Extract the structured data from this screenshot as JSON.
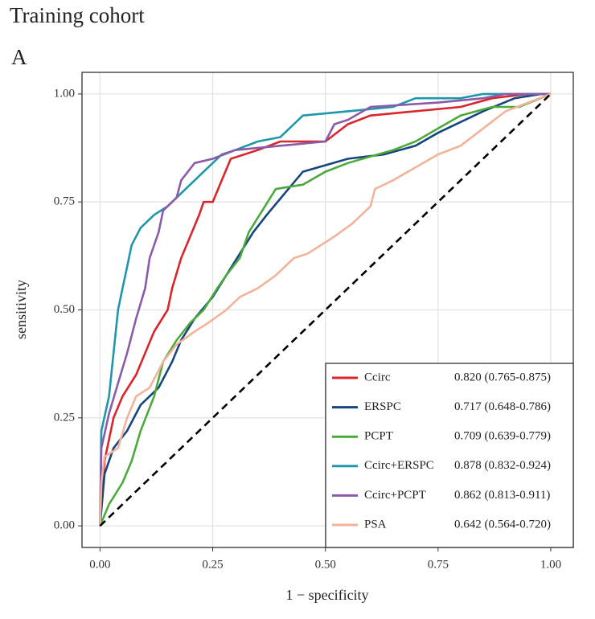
{
  "chart_data": {
    "type": "line",
    "title": "Training cohort",
    "subtitle": "A",
    "x_label": "1 − specificity",
    "y_label": "sensitivity",
    "xlim": [
      -0.04,
      1.05
    ],
    "ylim": [
      -0.05,
      1.05
    ],
    "xticks": [
      {
        "value": 0,
        "label": "0.00"
      },
      {
        "value": 0.25,
        "label": "0.25"
      },
      {
        "value": 0.5,
        "label": "0.50"
      },
      {
        "value": 0.75,
        "label": "0.75"
      },
      {
        "value": 1,
        "label": "1.00"
      }
    ],
    "yticks": [
      {
        "value": 0,
        "label": "0.00"
      },
      {
        "value": 0.25,
        "label": "0.25"
      },
      {
        "value": 0.5,
        "label": "0.50"
      },
      {
        "value": 0.75,
        "label": "0.75"
      },
      {
        "value": 1,
        "label": "1.00"
      }
    ],
    "grid": true,
    "reference_diagonal": true,
    "legend": "bottom-right",
    "series": [
      {
        "name": "Ccirc",
        "color": "#d9262c",
        "label": "0.820 (0.765-0.875)",
        "x": [
          0,
          0.01,
          0.03,
          0.05,
          0.08,
          0.1,
          0.12,
          0.15,
          0.16,
          0.18,
          0.2,
          0.22,
          0.23,
          0.25,
          0.27,
          0.29,
          0.35,
          0.4,
          0.5,
          0.55,
          0.6,
          0.8,
          0.87,
          0.95,
          1
        ],
        "values": [
          0,
          0.15,
          0.25,
          0.3,
          0.35,
          0.4,
          0.45,
          0.5,
          0.55,
          0.62,
          0.67,
          0.72,
          0.75,
          0.75,
          0.8,
          0.85,
          0.87,
          0.89,
          0.89,
          0.93,
          0.95,
          0.97,
          0.99,
          1,
          1
        ]
      },
      {
        "name": "ERSPC",
        "color": "#17467e",
        "label": "0.717 (0.648-0.786)",
        "x": [
          0,
          0.01,
          0.03,
          0.06,
          0.09,
          0.13,
          0.16,
          0.18,
          0.21,
          0.25,
          0.28,
          0.31,
          0.34,
          0.37,
          0.41,
          0.45,
          0.55,
          0.63,
          0.7,
          0.75,
          0.85,
          0.92,
          0.98,
          1
        ],
        "values": [
          0,
          0.12,
          0.18,
          0.22,
          0.28,
          0.32,
          0.38,
          0.43,
          0.48,
          0.53,
          0.58,
          0.63,
          0.68,
          0.72,
          0.77,
          0.82,
          0.85,
          0.86,
          0.88,
          0.91,
          0.96,
          0.99,
          1,
          1
        ]
      },
      {
        "name": "PCPT",
        "color": "#4caa3c",
        "label": "0.709 (0.639-0.779)",
        "x": [
          0,
          0.02,
          0.05,
          0.07,
          0.09,
          0.12,
          0.14,
          0.17,
          0.2,
          0.23,
          0.26,
          0.28,
          0.31,
          0.33,
          0.36,
          0.39,
          0.45,
          0.5,
          0.55,
          0.65,
          0.7,
          0.75,
          0.8,
          0.87,
          0.93,
          1
        ],
        "values": [
          0,
          0.05,
          0.1,
          0.15,
          0.22,
          0.3,
          0.38,
          0.43,
          0.47,
          0.5,
          0.55,
          0.58,
          0.62,
          0.68,
          0.73,
          0.78,
          0.79,
          0.82,
          0.84,
          0.87,
          0.89,
          0.92,
          0.95,
          0.97,
          0.97,
          1
        ]
      },
      {
        "name": "Ccirc+ERSPC",
        "color": "#1e97aa",
        "label": "0.878 (0.832-0.924)",
        "x": [
          0,
          0.003,
          0.02,
          0.03,
          0.04,
          0.05,
          0.06,
          0.07,
          0.09,
          0.12,
          0.15,
          0.18,
          0.21,
          0.23,
          0.25,
          0.27,
          0.3,
          0.35,
          0.4,
          0.45,
          0.55,
          0.65,
          0.7,
          0.8,
          0.85,
          1
        ],
        "values": [
          0,
          0.22,
          0.3,
          0.4,
          0.5,
          0.55,
          0.6,
          0.65,
          0.69,
          0.72,
          0.74,
          0.77,
          0.8,
          0.82,
          0.84,
          0.86,
          0.87,
          0.89,
          0.9,
          0.95,
          0.96,
          0.97,
          0.99,
          0.99,
          1,
          1
        ]
      },
      {
        "name": "Ccirc+PCPT",
        "color": "#8b5aa9",
        "label": "0.862 (0.813-0.911)",
        "x": [
          0,
          0.003,
          0.02,
          0.04,
          0.06,
          0.08,
          0.1,
          0.11,
          0.13,
          0.14,
          0.17,
          0.18,
          0.21,
          0.25,
          0.3,
          0.4,
          0.5,
          0.52,
          0.55,
          0.6,
          0.75,
          0.85,
          0.9,
          1
        ],
        "values": [
          0,
          0.18,
          0.26,
          0.33,
          0.4,
          0.48,
          0.55,
          0.62,
          0.68,
          0.73,
          0.76,
          0.8,
          0.84,
          0.85,
          0.87,
          0.88,
          0.89,
          0.93,
          0.94,
          0.97,
          0.98,
          0.99,
          1,
          1
        ]
      },
      {
        "name": "PSA",
        "color": "#f2b39b",
        "label": "0.642 (0.564-0.720)",
        "x": [
          0,
          0.003,
          0.01,
          0.04,
          0.06,
          0.08,
          0.11,
          0.14,
          0.17,
          0.21,
          0.24,
          0.28,
          0.31,
          0.35,
          0.39,
          0.43,
          0.46,
          0.52,
          0.56,
          0.6,
          0.61,
          0.65,
          0.7,
          0.75,
          0.8,
          0.85,
          0.9,
          0.95,
          1
        ],
        "values": [
          0,
          0.1,
          0.16,
          0.18,
          0.25,
          0.3,
          0.32,
          0.38,
          0.42,
          0.45,
          0.47,
          0.5,
          0.53,
          0.55,
          0.58,
          0.62,
          0.63,
          0.67,
          0.7,
          0.74,
          0.78,
          0.8,
          0.83,
          0.86,
          0.88,
          0.92,
          0.96,
          0.98,
          1
        ]
      }
    ]
  }
}
